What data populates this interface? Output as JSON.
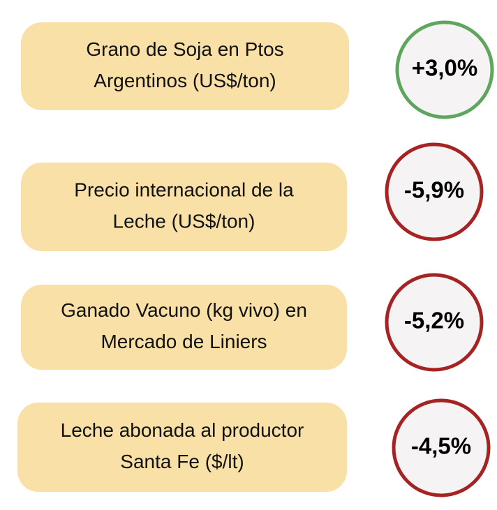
{
  "items": [
    {
      "label": [
        "Grano de Soja en Ptos",
        "Argentinos (US$/ton)"
      ],
      "change": "+3,0%",
      "color": "#5ea65e"
    },
    {
      "label": [
        "Precio internacional de la",
        "Leche (US$/ton)"
      ],
      "change": "-5,9%",
      "color": "#a52323"
    },
    {
      "label": [
        "Ganado Vacuno (kg vivo) en",
        "Mercado de Liniers"
      ],
      "change": "-5,2%",
      "color": "#a52323"
    },
    {
      "label": [
        "Leche abonada al productor",
        "Santa Fe ($/lt)"
      ],
      "change": "-4,5%",
      "color": "#a52323"
    }
  ]
}
